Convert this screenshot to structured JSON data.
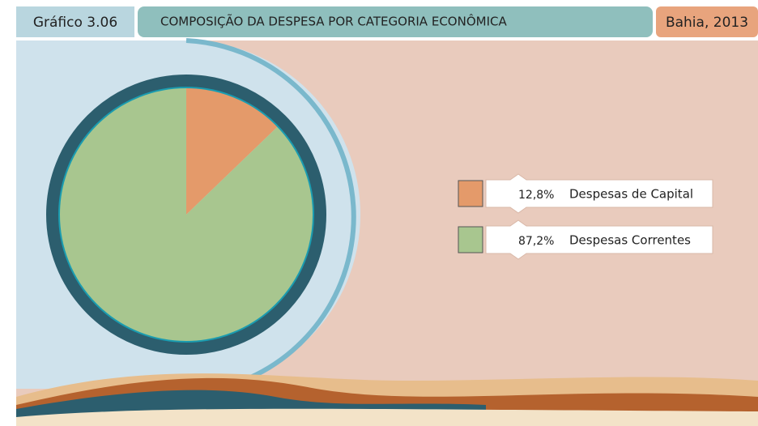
{
  "chart_data": {
    "type": "pie",
    "label": "Gráfico 3.06",
    "title": "COMPOSIÇÃO DA DESPESA POR CATEGORIA ECONÔMICA",
    "subtitle": "Bahia, 2013",
    "categories": [
      "Despesas de Capital",
      "Despesas Correntes"
    ],
    "values": [
      12.8,
      87.2
    ],
    "value_labels": [
      "12,8%",
      "87,2%"
    ],
    "colors": [
      "#e49a6a",
      "#a8c68f"
    ]
  }
}
